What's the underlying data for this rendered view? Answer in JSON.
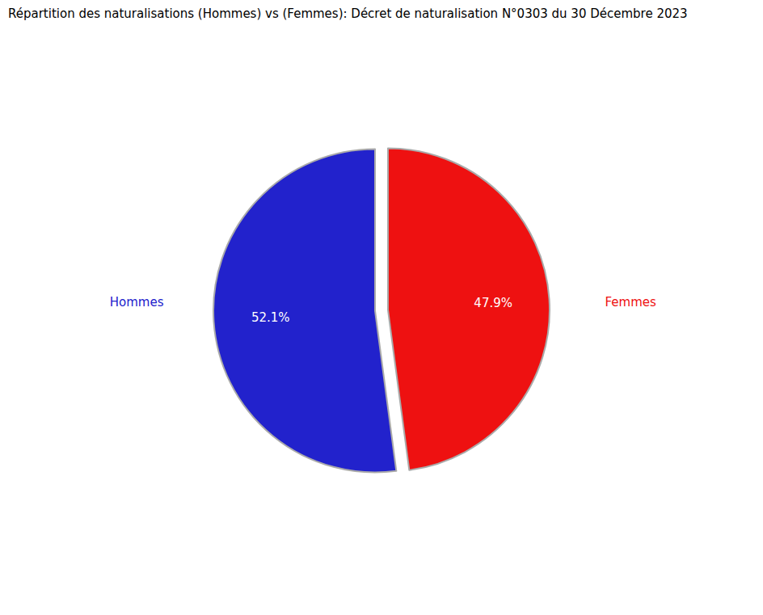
{
  "chart_data": {
    "type": "pie",
    "title": "Répartition des naturalisations (Hommes) vs (Femmes): Décret de naturalisation N°0303 du 30 Décembre 2023",
    "categories": [
      "Hommes",
      "Femmes"
    ],
    "values": [
      52.1,
      47.9
    ],
    "value_labels": [
      "52.1%",
      "47.9%"
    ],
    "colors": [
      "#2222cc",
      "#ee1111"
    ],
    "data_labels": true
  }
}
